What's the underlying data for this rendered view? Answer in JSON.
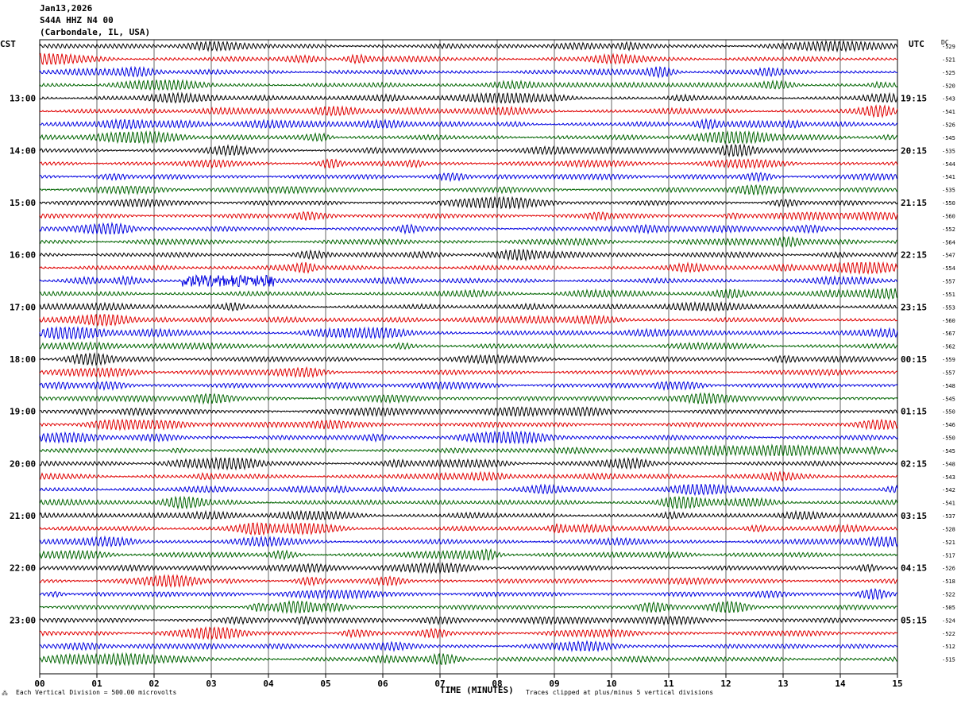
{
  "header": {
    "date": "Jan13,2026",
    "station": "S44A HHZ N4 00",
    "location": "(Carbondale, IL, USA)"
  },
  "left_tz": "CST",
  "right_tz": "UTC",
  "dc_label": "DC",
  "footer": {
    "xlabel": "TIME (MINUTES)",
    "scale_note": "Each Vertical Division =  500.00 microvolts",
    "clip_note": "Traces clipped at plus/minus 5 vertical divisions"
  },
  "colors": {
    "trace_cycle": [
      "#000000",
      "#e00000",
      "#0000e0",
      "#006400"
    ],
    "grid": "#000000"
  },
  "chart_data": {
    "type": "line",
    "title": "S44A HHZ N4 00",
    "xlabel": "TIME (MINUTES)",
    "x_ticks": [
      "00",
      "01",
      "02",
      "03",
      "04",
      "05",
      "06",
      "07",
      "08",
      "09",
      "10",
      "11",
      "12",
      "13",
      "14",
      "15"
    ],
    "xlim": [
      0,
      15
    ],
    "left_hour_labels": [
      "13:00",
      "14:00",
      "15:00",
      "16:00",
      "17:00",
      "18:00",
      "19:00",
      "20:00",
      "21:00",
      "22:00",
      "23:00"
    ],
    "right_hour_labels": [
      "19:15",
      "20:15",
      "21:15",
      "22:15",
      "23:15",
      "00:15",
      "01:15",
      "02:15",
      "03:15",
      "04:15",
      "05:15"
    ],
    "dc_offsets": [
      -529,
      -521,
      -525,
      -520,
      -543,
      -541,
      -526,
      -545,
      -535,
      -544,
      -541,
      -535,
      -550,
      -560,
      -552,
      -564,
      -547,
      -554,
      -557,
      -551,
      -553,
      -560,
      -567,
      -562,
      -559,
      -557,
      -548,
      -545,
      -550,
      -546,
      -550,
      -545,
      -548,
      -543,
      -542,
      -541,
      -537,
      -528,
      -521,
      -517,
      -526,
      -518,
      -522,
      -505,
      -524,
      -522,
      -512,
      -515
    ],
    "event": {
      "trace_index": 18,
      "start_min": 2.5,
      "end_min": 4.1
    },
    "grid": true
  }
}
